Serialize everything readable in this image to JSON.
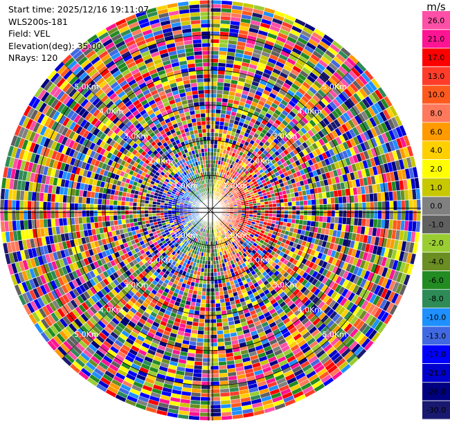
{
  "info": {
    "start_time": "Start time: 2025/12/16 19:11:07",
    "station": "WLS200s-181",
    "field": "Field: VEL",
    "elevation": "Elevation(deg): 35.00",
    "nrays": "NRays: 120"
  },
  "chart_data": {
    "type": "heatmap",
    "projection": "polar-ppi",
    "title": "",
    "field": "VEL",
    "elevation_deg": 35.0,
    "n_rays": 120,
    "max_range_km": 6.0,
    "range_rings": [
      {
        "km": 1,
        "label": "1.0Km"
      },
      {
        "km": 2,
        "label": "2.0Km"
      },
      {
        "km": 3,
        "label": "3.0Km"
      },
      {
        "km": 4,
        "label": "4.0Km"
      },
      {
        "km": 5,
        "label": "5.0Km"
      }
    ],
    "pattern": "near-range radial velocity: negative (blue) to the west, positive (orange/red) to the east; beyond ~2 km noisy random values across the full scale",
    "colorbar": {
      "unit": "m/s",
      "ticks": [
        "26.0",
        "21.0",
        "17.0",
        "13.0",
        "10.0",
        "8.0",
        "6.0",
        "4.0",
        "2.0",
        "1.0",
        "0.0",
        "-1.0",
        "-2.0",
        "-4.0",
        "-6.0",
        "-8.0",
        "-10.0",
        "-13.0",
        "-17.0",
        "-21.0",
        "-26.0",
        "-30.0"
      ],
      "colors": [
        "#ff4fa7",
        "#ff1493",
        "#ff0000",
        "#ff3c2a",
        "#ff5a1e",
        "#ff7a5c",
        "#ff9b00",
        "#ffd000",
        "#ffff00",
        "#c8c800",
        "#808080",
        "#606060",
        "#9acd32",
        "#6b8e23",
        "#228b22",
        "#2e8b57",
        "#1e90ff",
        "#4169e1",
        "#0000ff",
        "#0000cd",
        "#000080",
        "#191970"
      ]
    }
  }
}
